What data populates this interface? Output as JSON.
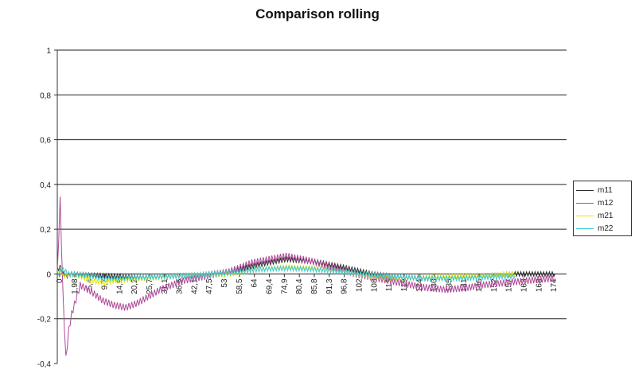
{
  "chart_data": {
    "type": "line",
    "title": "Comparison rolling",
    "xlabel": "",
    "ylabel": "",
    "ylim": [
      -0.4,
      1
    ],
    "y_ticks": [
      "1",
      "0,8",
      "0,6",
      "0,4",
      "0,2",
      "0",
      "-0,2",
      "-0,4"
    ],
    "y_tick_values": [
      1,
      0.8,
      0.6,
      0.4,
      0.2,
      0,
      -0.2,
      -0.4
    ],
    "x_tick_labels": [
      "0",
      "1,98",
      "5,4",
      "9,7",
      "14,9",
      "20,2",
      "25,7",
      "31,1",
      "36,5",
      "42,1",
      "47,5",
      "53",
      "58,5",
      "64",
      "69,4",
      "74,9",
      "80,4",
      "85,8",
      "91,3",
      "96,8",
      "102",
      "108",
      "113",
      "119",
      "124",
      "130",
      "135",
      "141",
      "146",
      "152",
      "157",
      "163",
      "168",
      "174"
    ],
    "grid": true,
    "legend": "right",
    "series": [
      {
        "name": "m11",
        "color": "#2b2b2b",
        "x": [
          0,
          1,
          2,
          3,
          5,
          10,
          20,
          30,
          40,
          50,
          60,
          70,
          80,
          90,
          100,
          110,
          120,
          130,
          140,
          150,
          160,
          174
        ],
        "values": [
          0.02,
          0.03,
          0.0,
          -0.01,
          0.0,
          -0.005,
          -0.01,
          -0.015,
          -0.01,
          -0.005,
          0.01,
          0.04,
          0.065,
          0.055,
          0.03,
          0.0,
          -0.015,
          -0.02,
          -0.015,
          -0.01,
          0.0,
          0.0
        ]
      },
      {
        "name": "m12",
        "color": "#b04a9a",
        "x": [
          0,
          1,
          2,
          3,
          4,
          5,
          8,
          12,
          16,
          20,
          24,
          28,
          32,
          36,
          40,
          44,
          48,
          52,
          56,
          60,
          64,
          68,
          72,
          76,
          80,
          84,
          88,
          92,
          96,
          100,
          104,
          108,
          112,
          116,
          120,
          124,
          128,
          132,
          136,
          140,
          144,
          148,
          152,
          156,
          160,
          164,
          168,
          174
        ],
        "values": [
          0.0,
          0.33,
          -0.1,
          -0.38,
          -0.25,
          -0.18,
          -0.05,
          -0.08,
          -0.12,
          -0.14,
          -0.15,
          -0.13,
          -0.1,
          -0.07,
          -0.05,
          -0.03,
          -0.02,
          -0.01,
          0.0,
          0.01,
          0.03,
          0.05,
          0.06,
          0.07,
          0.08,
          0.07,
          0.06,
          0.045,
          0.03,
          0.015,
          0.0,
          -0.01,
          -0.02,
          -0.03,
          -0.04,
          -0.05,
          -0.06,
          -0.065,
          -0.07,
          -0.065,
          -0.06,
          -0.05,
          -0.045,
          -0.04,
          -0.035,
          -0.03,
          -0.025,
          -0.02
        ]
      },
      {
        "name": "m21",
        "color": "#e8e800",
        "x": [
          0,
          1,
          2,
          4,
          8,
          12,
          16,
          20,
          30,
          40,
          50,
          60,
          70,
          80,
          90,
          100,
          110,
          120,
          130,
          140,
          150,
          160
        ],
        "values": [
          0.0,
          0.02,
          -0.01,
          0.0,
          -0.01,
          -0.03,
          -0.04,
          -0.03,
          -0.02,
          -0.01,
          -0.005,
          0.0,
          0.02,
          0.03,
          0.025,
          0.01,
          -0.01,
          -0.02,
          -0.015,
          -0.01,
          -0.01,
          0.0
        ]
      },
      {
        "name": "m22",
        "color": "#3cc8d8",
        "x": [
          0,
          1,
          2,
          4,
          8,
          12,
          16,
          20,
          30,
          40,
          50,
          60,
          70,
          80,
          90,
          100,
          110,
          120,
          130,
          140,
          150,
          160
        ],
        "values": [
          0.0,
          0.01,
          0.02,
          0.0,
          -0.005,
          -0.01,
          -0.02,
          -0.02,
          -0.015,
          -0.01,
          -0.005,
          0.005,
          0.02,
          0.025,
          0.02,
          0.01,
          -0.005,
          -0.015,
          -0.02,
          -0.02,
          -0.015,
          -0.01
        ]
      }
    ]
  }
}
